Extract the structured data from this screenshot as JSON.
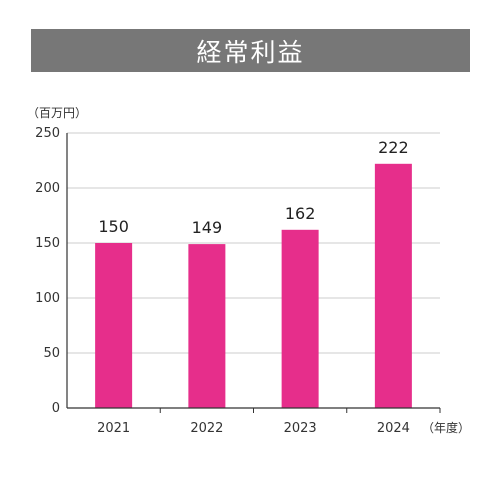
{
  "chart_data": {
    "type": "bar",
    "title": "経常利益",
    "y_unit": "（百万円）",
    "x_unit": "（年度）",
    "categories": [
      "2021",
      "2022",
      "2023",
      "2024"
    ],
    "values": [
      150,
      149,
      162,
      222
    ],
    "ylim": [
      0,
      250
    ],
    "yticks": [
      0,
      50,
      100,
      150,
      200,
      250
    ],
    "grid": true,
    "legend": "none",
    "colors": {
      "bar": "#e62e8b",
      "title_bar": "#777777",
      "grid": "#cccccc",
      "axis": "#333333"
    }
  }
}
